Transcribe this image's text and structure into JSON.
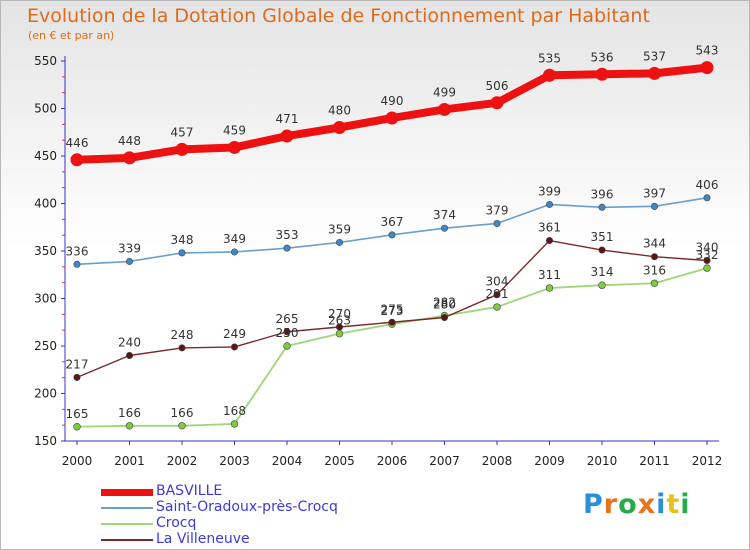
{
  "title": "Evolution de la Dotation Globale de Fonctionnement par Habitant",
  "subtitle": "(en € et par an)",
  "logo": {
    "text": "Proxiti",
    "letter_colors": [
      "#2a8fd6",
      "#e8731a",
      "#2aa84a",
      "#e8731a",
      "#2a8fd6",
      "#e8c21a",
      "#2aa84a"
    ]
  },
  "chart_data": {
    "type": "line",
    "title": "Evolution de la Dotation Globale de Fonctionnement par Habitant",
    "subtitle": "(en € et par an)",
    "xlabel": "",
    "ylabel": "",
    "x": [
      "2000",
      "2001",
      "2002",
      "2003",
      "2004",
      "2005",
      "2006",
      "2007",
      "2008",
      "2009",
      "2010",
      "2011",
      "2012"
    ],
    "ylim": [
      150,
      550
    ],
    "yticks": [
      150,
      200,
      250,
      300,
      350,
      400,
      450,
      500,
      550
    ],
    "grid": false,
    "legend_position": "bottom-left",
    "series": [
      {
        "name": "BASVILLE",
        "color": "#ee1111",
        "marker_color": "#ee1111",
        "values": [
          446,
          448,
          457,
          459,
          471,
          480,
          490,
          499,
          506,
          535,
          536,
          537,
          543
        ],
        "labels": [
          "446",
          "448",
          "457",
          "459",
          "471",
          "480",
          "490",
          "499",
          "506",
          "535",
          "536",
          "537",
          "543"
        ]
      },
      {
        "name": "Saint-Oradoux-près-Crocq",
        "color": "#6aa0cc",
        "marker_color": "#3f88c8",
        "values": [
          336,
          339,
          348,
          349,
          353,
          359,
          367,
          374,
          379,
          399,
          396,
          397,
          406
        ],
        "labels": [
          "336",
          "339",
          "348",
          "349",
          "353",
          "359",
          "367",
          "374",
          "379",
          "399",
          "396",
          "397",
          "406"
        ]
      },
      {
        "name": "Crocq",
        "color": "#9ed67a",
        "marker_color": "#7ccc3c",
        "values": [
          165,
          166,
          166,
          168,
          250,
          263,
          273,
          282,
          291,
          311,
          314,
          316,
          332
        ],
        "labels": [
          "165",
          "166",
          "166",
          "168",
          "250",
          "263",
          "273",
          "282",
          "291",
          "311",
          "314",
          "316",
          "332"
        ]
      },
      {
        "name": "La Villeneuve",
        "color": "#7a2a2a",
        "marker_color": "#5a1616",
        "values": [
          217,
          240,
          248,
          249,
          265,
          270,
          275,
          280,
          304,
          361,
          351,
          344,
          340
        ],
        "labels": [
          "217",
          "240",
          "248",
          "249",
          "265",
          "270",
          "275",
          "280",
          "304",
          "361",
          "351",
          "344",
          "340"
        ]
      }
    ]
  }
}
